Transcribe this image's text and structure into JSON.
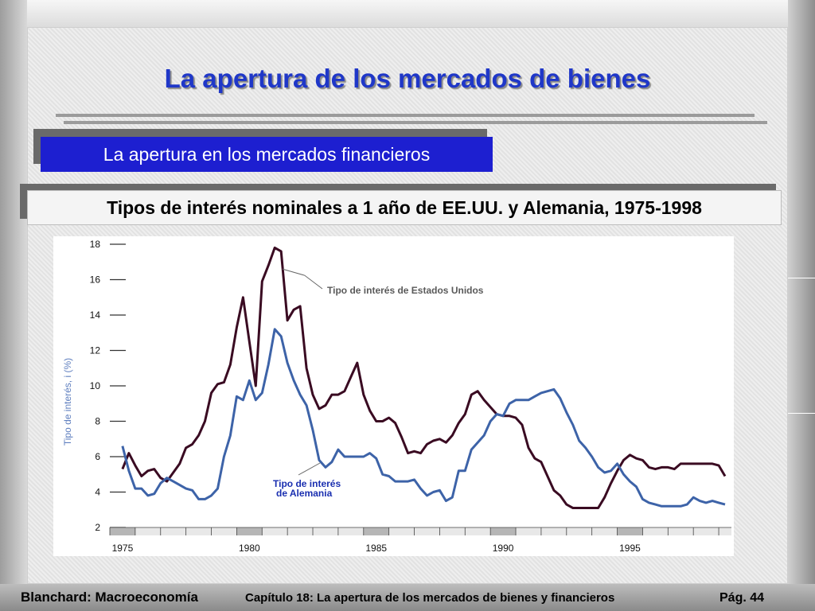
{
  "slide": {
    "title": "La apertura de los mercados de bienes",
    "subtitle": "La apertura en los mercados financieros",
    "heading": "Tipos de interés nominales a 1 año de EE.UU. y Alemania, 1975-1998"
  },
  "footer": {
    "left": "Blanchard: Macroeconomía",
    "center": "Capítulo 18:  La apertura de los mercados de bienes y financieros",
    "page": "Pág. 44"
  },
  "colors": {
    "title": "#1f37c8",
    "subtitle_bg": "#1d1fd0",
    "us_series": "#3a0b22",
    "germany_series": "#3d63a8",
    "annotation_germany": "#1a2fb0"
  },
  "chart_data": {
    "type": "line",
    "ylabel": "Tipo de interés, i (%)",
    "ylim": [
      2,
      18
    ],
    "yticks": [
      2,
      4,
      6,
      8,
      10,
      12,
      14,
      16,
      18
    ],
    "xlim": [
      1974.5,
      1999
    ],
    "xticks": [
      1975,
      1980,
      1985,
      1990,
      1995
    ],
    "annotations": [
      {
        "text": "Tipo de interés de Estados Unidos",
        "series": 0
      },
      {
        "text_lines": [
          "Tipo de interés",
          "de Alemania"
        ],
        "series": 1
      }
    ],
    "series": [
      {
        "x": [
          1975.0,
          1975.25,
          1975.5,
          1975.75,
          1976.0,
          1976.25,
          1976.5,
          1976.75,
          1977.0,
          1977.25,
          1977.5,
          1977.75,
          1978.0,
          1978.25,
          1978.5,
          1978.75,
          1979.0,
          1979.25,
          1979.5,
          1979.75,
          1980.0,
          1980.25,
          1980.5,
          1980.75,
          1981.0,
          1981.25,
          1981.5,
          1981.75,
          1982.0,
          1982.25,
          1982.5,
          1982.75,
          1983.0,
          1983.25,
          1983.5,
          1983.75,
          1984.0,
          1984.25,
          1984.5,
          1984.75,
          1985.0,
          1985.25,
          1985.5,
          1985.75,
          1986.0,
          1986.25,
          1986.5,
          1986.75,
          1987.0,
          1987.25,
          1987.5,
          1987.75,
          1988.0,
          1988.25,
          1988.5,
          1988.75,
          1989.0,
          1989.25,
          1989.5,
          1989.75,
          1990.0,
          1990.25,
          1990.5,
          1990.75,
          1991.0,
          1991.25,
          1991.5,
          1991.75,
          1992.0,
          1992.25,
          1992.5,
          1992.75,
          1993.0,
          1993.25,
          1993.5,
          1993.75,
          1994.0,
          1994.25,
          1994.5,
          1994.75,
          1995.0,
          1995.25,
          1995.5,
          1995.75,
          1996.0,
          1996.25,
          1996.5,
          1996.75,
          1997.0,
          1997.25,
          1997.5,
          1997.75,
          1998.0,
          1998.25,
          1998.5,
          1998.75
        ],
        "values": [
          5.3,
          6.2,
          5.5,
          4.9,
          5.2,
          5.3,
          4.8,
          4.6,
          5.1,
          5.6,
          6.5,
          6.7,
          7.2,
          8.0,
          9.6,
          10.1,
          10.2,
          11.2,
          13.3,
          15.0,
          12.5,
          10.0,
          15.9,
          16.8,
          17.8,
          17.6,
          13.7,
          14.3,
          14.5,
          11.0,
          9.5,
          8.7,
          8.9,
          9.5,
          9.5,
          9.7,
          10.5,
          11.3,
          9.5,
          8.6,
          8.0,
          8.0,
          8.2,
          7.9,
          7.1,
          6.2,
          6.3,
          6.2,
          6.7,
          6.9,
          7.0,
          6.8,
          7.2,
          7.9,
          8.4,
          9.5,
          9.7,
          9.2,
          8.8,
          8.4,
          8.3,
          8.3,
          8.2,
          7.8,
          6.5,
          5.9,
          5.7,
          4.9,
          4.1,
          3.8,
          3.3,
          3.1,
          3.1,
          3.1,
          3.1,
          3.1,
          3.7,
          4.5,
          5.2,
          5.8,
          6.1,
          5.9,
          5.8,
          5.4,
          5.3,
          5.4,
          5.4,
          5.3,
          5.6,
          5.6,
          5.6,
          5.6,
          5.6,
          5.6,
          5.5,
          4.9
        ]
      },
      {
        "x": [
          1975.0,
          1975.25,
          1975.5,
          1975.75,
          1976.0,
          1976.25,
          1976.5,
          1976.75,
          1977.0,
          1977.25,
          1977.5,
          1977.75,
          1978.0,
          1978.25,
          1978.5,
          1978.75,
          1979.0,
          1979.25,
          1979.5,
          1979.75,
          1980.0,
          1980.25,
          1980.5,
          1980.75,
          1981.0,
          1981.25,
          1981.5,
          1981.75,
          1982.0,
          1982.25,
          1982.5,
          1982.75,
          1983.0,
          1983.25,
          1983.5,
          1983.75,
          1984.0,
          1984.25,
          1984.5,
          1984.75,
          1985.0,
          1985.25,
          1985.5,
          1985.75,
          1986.0,
          1986.25,
          1986.5,
          1986.75,
          1987.0,
          1987.25,
          1987.5,
          1987.75,
          1988.0,
          1988.25,
          1988.5,
          1988.75,
          1989.0,
          1989.25,
          1989.5,
          1989.75,
          1990.0,
          1990.25,
          1990.5,
          1990.75,
          1991.0,
          1991.25,
          1991.5,
          1991.75,
          1992.0,
          1992.25,
          1992.5,
          1992.75,
          1993.0,
          1993.25,
          1993.5,
          1993.75,
          1994.0,
          1994.25,
          1994.5,
          1994.75,
          1995.0,
          1995.25,
          1995.5,
          1995.75,
          1996.0,
          1996.25,
          1996.5,
          1996.75,
          1997.0,
          1997.25,
          1997.5,
          1997.75,
          1998.0,
          1998.25,
          1998.5,
          1998.75
        ],
        "values": [
          6.6,
          5.2,
          4.2,
          4.2,
          3.8,
          3.9,
          4.5,
          4.8,
          4.6,
          4.4,
          4.2,
          4.1,
          3.6,
          3.6,
          3.8,
          4.2,
          6.0,
          7.2,
          9.4,
          9.2,
          10.3,
          9.2,
          9.6,
          11.2,
          13.2,
          12.8,
          11.3,
          10.3,
          9.5,
          8.9,
          7.5,
          5.8,
          5.4,
          5.7,
          6.4,
          6.0,
          6.0,
          6.0,
          6.0,
          6.2,
          5.9,
          5.0,
          4.9,
          4.6,
          4.6,
          4.6,
          4.7,
          4.2,
          3.8,
          4.0,
          4.1,
          3.5,
          3.7,
          5.2,
          5.2,
          6.4,
          6.8,
          7.2,
          8.0,
          8.4,
          8.3,
          9.0,
          9.2,
          9.2,
          9.2,
          9.4,
          9.6,
          9.7,
          9.8,
          9.3,
          8.5,
          7.8,
          6.9,
          6.5,
          6.0,
          5.4,
          5.1,
          5.2,
          5.6,
          5.0,
          4.6,
          4.3,
          3.6,
          3.4,
          3.3,
          3.2,
          3.2,
          3.2,
          3.2,
          3.3,
          3.7,
          3.5,
          3.4,
          3.5,
          3.4,
          3.3
        ]
      }
    ]
  }
}
